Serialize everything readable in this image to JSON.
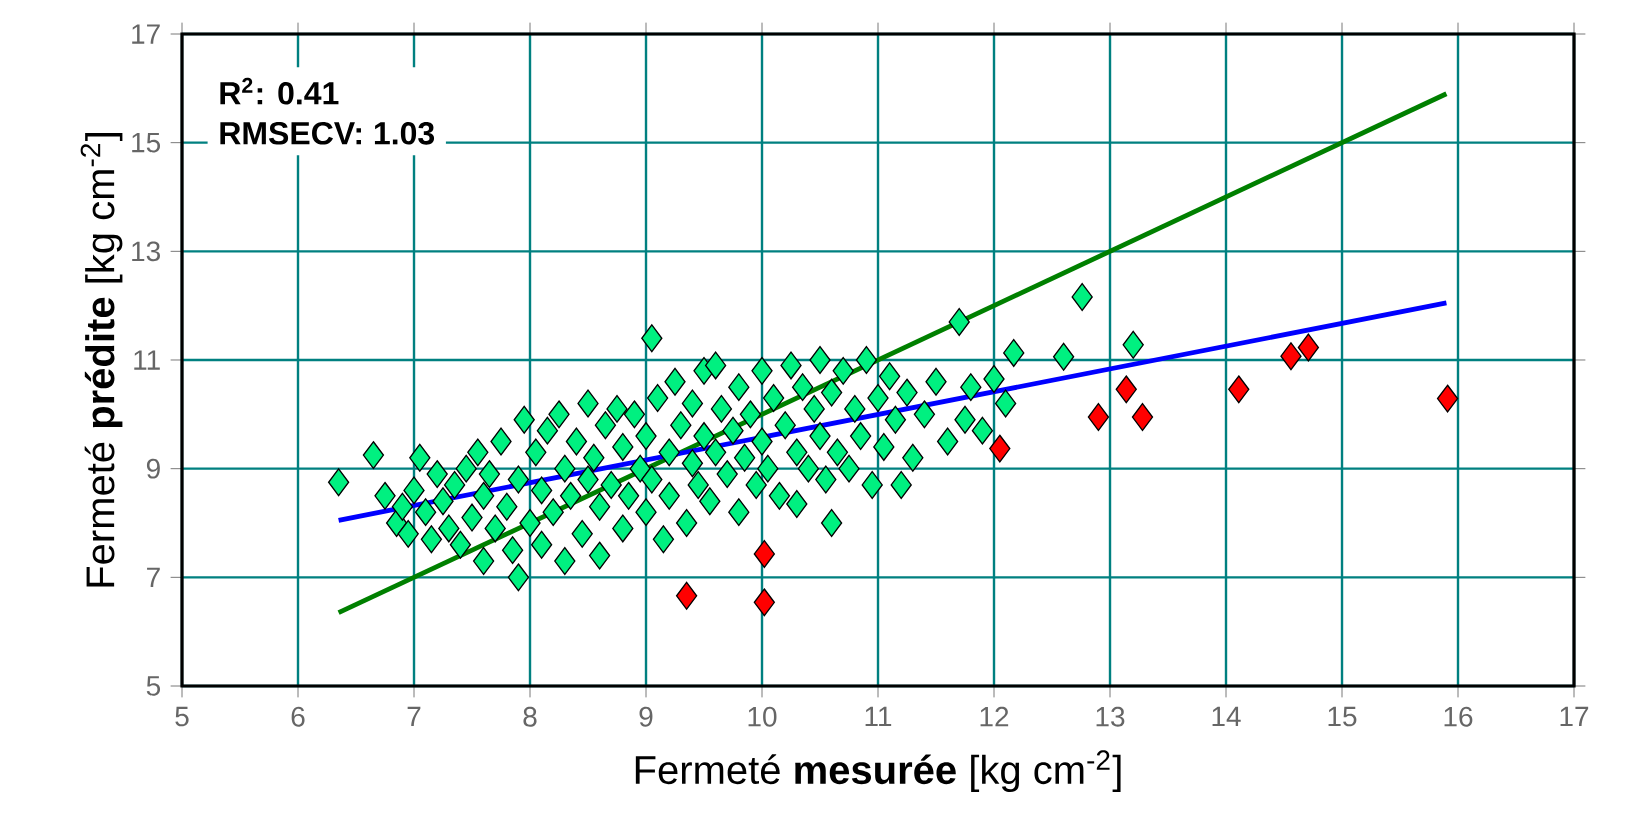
{
  "chart_data": {
    "type": "scatter",
    "xlabel": "Fermeté **mesurée** [kg cm$^{-2}$]",
    "ylabel": "Fermeté **prédite** [kg cm$^{-2}$]",
    "annotations": [
      "R$^{2}$: 0.41",
      "RMSECV: 1.03"
    ],
    "xlim": [
      5,
      17
    ],
    "ylim": [
      5,
      17
    ],
    "xticks": [
      5,
      6,
      7,
      8,
      9,
      10,
      11,
      12,
      13,
      14,
      15,
      16,
      17
    ],
    "yticks": [
      5,
      7,
      9,
      11,
      13,
      15,
      17
    ],
    "grid": true,
    "marker": "diamond",
    "series": [
      {
        "color": "#00f080",
        "x": [
          6.35,
          6.65,
          6.75,
          6.85,
          6.9,
          6.95,
          7.0,
          7.05,
          7.1,
          7.15,
          7.2,
          7.25,
          7.3,
          7.35,
          7.4,
          7.45,
          7.5,
          7.55,
          7.6,
          7.6,
          7.65,
          7.7,
          7.75,
          7.8,
          7.85,
          7.9,
          7.9,
          7.95,
          8.0,
          8.05,
          8.1,
          8.1,
          8.15,
          8.2,
          8.25,
          8.3,
          8.3,
          8.35,
          8.4,
          8.45,
          8.5,
          8.5,
          8.55,
          8.6,
          8.6,
          8.65,
          8.7,
          8.75,
          8.8,
          8.8,
          8.85,
          8.9,
          8.95,
          9.0,
          9.0,
          9.05,
          9.05,
          9.1,
          9.15,
          9.2,
          9.2,
          9.25,
          9.3,
          9.35,
          9.4,
          9.4,
          9.45,
          9.5,
          9.5,
          9.55,
          9.6,
          9.6,
          9.65,
          9.7,
          9.75,
          9.8,
          9.8,
          9.85,
          9.9,
          9.95,
          10.0,
          10.0,
          10.05,
          10.1,
          10.15,
          10.2,
          10.25,
          10.3,
          10.3,
          10.35,
          10.4,
          10.45,
          10.5,
          10.5,
          10.55,
          10.6,
          10.6,
          10.65,
          10.7,
          10.75,
          10.8,
          10.85,
          10.9,
          10.95,
          11.0,
          11.05,
          11.1,
          11.15,
          11.2,
          11.25,
          11.3,
          11.4,
          11.5,
          11.6,
          11.7,
          11.75,
          11.8,
          11.9,
          12.0,
          12.1,
          12.17,
          12.6,
          12.76,
          13.2
        ],
        "values": [
          8.75,
          9.25,
          8.5,
          8.0,
          8.3,
          7.8,
          8.6,
          9.2,
          8.2,
          7.7,
          8.9,
          8.4,
          7.9,
          8.7,
          7.6,
          9.0,
          8.1,
          9.3,
          7.3,
          8.5,
          8.9,
          7.9,
          9.5,
          8.3,
          7.5,
          7.0,
          8.8,
          9.9,
          8.0,
          9.3,
          8.6,
          7.6,
          9.7,
          8.2,
          10.0,
          9.0,
          7.3,
          8.5,
          9.5,
          7.8,
          8.8,
          10.2,
          9.2,
          7.4,
          8.3,
          9.8,
          8.7,
          10.1,
          7.9,
          9.4,
          8.5,
          10.0,
          9.0,
          8.2,
          9.6,
          11.4,
          8.8,
          10.3,
          7.7,
          9.3,
          8.5,
          10.6,
          9.8,
          8.0,
          9.1,
          10.2,
          8.7,
          9.6,
          10.8,
          8.4,
          10.9,
          9.3,
          10.1,
          8.9,
          9.7,
          10.5,
          8.2,
          9.2,
          10.0,
          8.7,
          9.5,
          10.8,
          9.0,
          10.3,
          8.5,
          9.8,
          10.9,
          8.35,
          9.3,
          10.5,
          9.0,
          10.1,
          9.6,
          11.0,
          8.8,
          8.0,
          10.4,
          9.3,
          10.8,
          9.0,
          10.1,
          9.6,
          11.0,
          8.7,
          10.3,
          9.4,
          10.7,
          9.9,
          8.7,
          10.4,
          9.2,
          10.0,
          10.6,
          9.5,
          11.7,
          9.9,
          10.5,
          9.7,
          10.65,
          10.2,
          11.13,
          11.06,
          12.16,
          11.28
        ]
      },
      {
        "color": "#ff0000",
        "x": [
          9.35,
          10.02,
          10.02,
          12.05,
          12.9,
          13.14,
          13.28,
          14.11,
          14.56,
          14.71,
          15.91
        ],
        "values": [
          6.66,
          7.43,
          6.54,
          9.37,
          9.95,
          10.46,
          9.95,
          10.46,
          11.07,
          11.23,
          10.29
        ]
      },
      {
        "type": "line",
        "marker": "none",
        "color": "#008000",
        "x": [
          6.35,
          15.9
        ],
        "values": [
          6.35,
          15.9
        ]
      },
      {
        "type": "line",
        "marker": "none",
        "color": "#0000ff",
        "x": [
          6.35,
          15.9
        ],
        "values": [
          8.05,
          12.05
        ]
      }
    ]
  }
}
